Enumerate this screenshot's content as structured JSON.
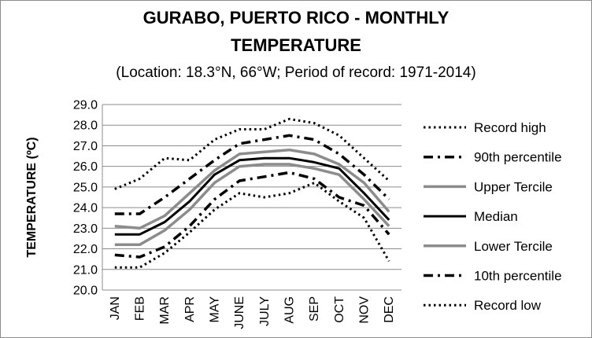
{
  "chart_data": {
    "type": "line",
    "title_line1": "GURABO, PUERTO RICO - MONTHLY",
    "title_line2": "TEMPERATURE",
    "subtitle": "(Location: 18.3°N, 66°W; Period of record: 1971-2014)",
    "xlabel": "",
    "ylabel": "TEMPERATURE (ºC)",
    "ylim": [
      20.0,
      29.0
    ],
    "yticks": [
      "20.0",
      "21.0",
      "22.0",
      "23.0",
      "24.0",
      "25.0",
      "26.0",
      "27.0",
      "28.0",
      "29.0"
    ],
    "grid": true,
    "legend_position": "right",
    "categories": [
      "JAN",
      "FEB",
      "MAR",
      "APR",
      "MAY",
      "JUNE",
      "JULY",
      "AUG",
      "SEP",
      "OCT",
      "NOV",
      "DEC"
    ],
    "series": [
      {
        "name": "Record high",
        "style": "dotted",
        "color": "#000000",
        "values": [
          24.9,
          25.4,
          26.4,
          26.3,
          27.3,
          27.8,
          27.8,
          28.3,
          28.1,
          27.5,
          26.4,
          25.3
        ]
      },
      {
        "name": "90th percentile",
        "style": "dashdot",
        "color": "#000000",
        "values": [
          23.7,
          23.7,
          24.5,
          25.4,
          26.3,
          27.1,
          27.3,
          27.5,
          27.3,
          26.6,
          25.6,
          24.4
        ]
      },
      {
        "name": "Upper Tercile",
        "style": "solid-gray",
        "color": "#8c8c8c",
        "values": [
          23.1,
          23.0,
          23.6,
          24.7,
          25.8,
          26.6,
          26.7,
          26.8,
          26.6,
          26.1,
          25.2,
          23.8
        ]
      },
      {
        "name": "Median",
        "style": "solid-black",
        "color": "#000000",
        "values": [
          22.7,
          22.7,
          23.3,
          24.3,
          25.6,
          26.3,
          26.4,
          26.4,
          26.2,
          25.9,
          24.7,
          23.4
        ]
      },
      {
        "name": "Lower Tercile",
        "style": "solid-gray",
        "color": "#8c8c8c",
        "values": [
          22.2,
          22.2,
          22.9,
          23.9,
          25.2,
          26.0,
          26.1,
          26.1,
          25.9,
          25.6,
          24.4,
          23.1
        ]
      },
      {
        "name": "10th percentile",
        "style": "dashdot",
        "color": "#000000",
        "values": [
          21.7,
          21.6,
          22.1,
          23.1,
          24.4,
          25.3,
          25.5,
          25.7,
          25.4,
          24.5,
          24.1,
          22.7
        ]
      },
      {
        "name": "Record low",
        "style": "dotted",
        "color": "#000000",
        "values": [
          21.1,
          21.1,
          21.8,
          22.8,
          23.9,
          24.7,
          24.5,
          24.7,
          25.2,
          24.3,
          23.5,
          21.4
        ]
      }
    ]
  }
}
